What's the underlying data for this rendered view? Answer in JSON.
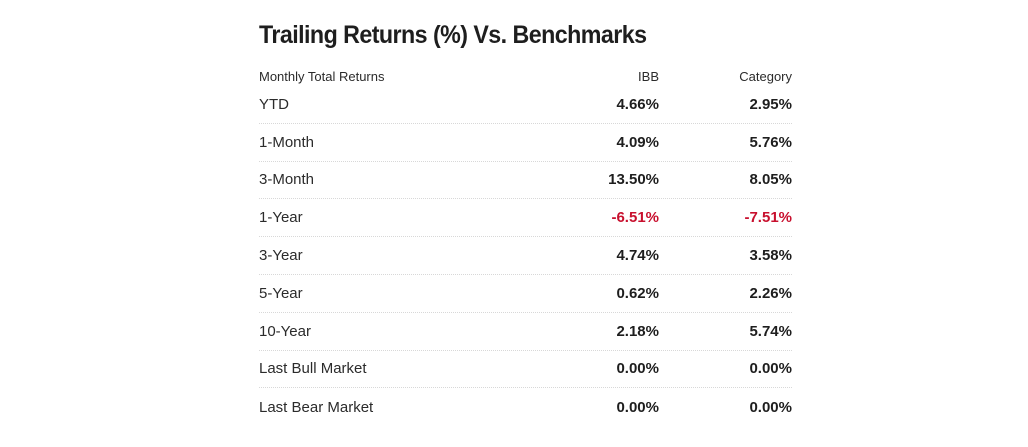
{
  "title": "Trailing Returns (%) Vs. Benchmarks",
  "table": {
    "headers": {
      "label": "Monthly Total Returns",
      "ibb": "IBB",
      "category": "Category"
    },
    "rows": [
      {
        "label": "YTD",
        "ibb": "4.66%",
        "category": "2.95%"
      },
      {
        "label": "1-Month",
        "ibb": "4.09%",
        "category": "5.76%"
      },
      {
        "label": "3-Month",
        "ibb": "13.50%",
        "category": "8.05%"
      },
      {
        "label": "1-Year",
        "ibb": "-6.51%",
        "category": "-7.51%"
      },
      {
        "label": "3-Year",
        "ibb": "4.74%",
        "category": "3.58%"
      },
      {
        "label": "5-Year",
        "ibb": "0.62%",
        "category": "2.26%"
      },
      {
        "label": "10-Year",
        "ibb": "2.18%",
        "category": "5.74%"
      },
      {
        "label": "Last Bull Market",
        "ibb": "0.00%",
        "category": "0.00%"
      },
      {
        "label": "Last Bear Market",
        "ibb": "0.00%",
        "category": "0.00%"
      }
    ]
  },
  "colors": {
    "negative": "#c8102e",
    "text": "#1e1e1e",
    "divider": "#d8d8d8"
  }
}
